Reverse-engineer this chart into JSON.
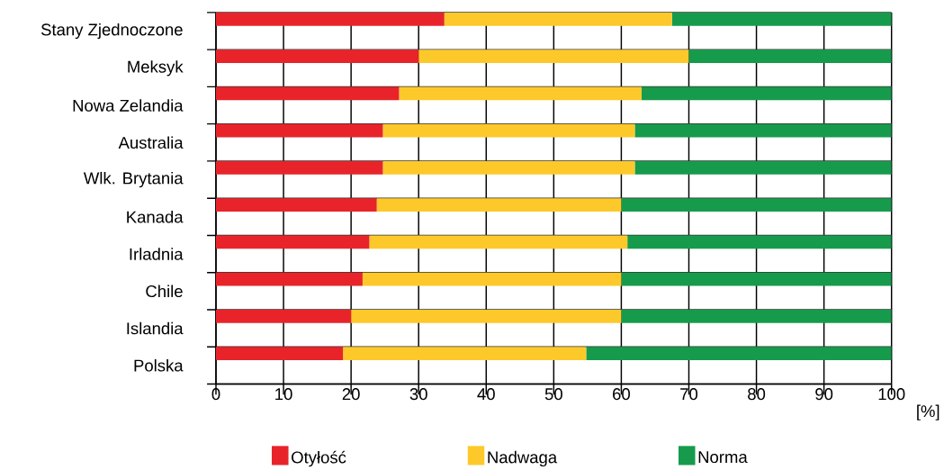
{
  "chart_data": {
    "type": "bar",
    "orientation": "horizontal",
    "stacked": true,
    "categories": [
      "Stany Zjednoczone",
      "Meksyk",
      "Nowa Zelandia",
      "Australia",
      "Wlk. Brytania",
      "Kanada",
      "Irladnia",
      "Chile",
      "Islandia",
      "Polska"
    ],
    "series": [
      {
        "name": "Otyłość",
        "color": "#e8242a",
        "values": [
          33.8,
          30,
          27.1,
          24.7,
          24.7,
          23.8,
          22.7,
          21.7,
          20,
          18.8
        ]
      },
      {
        "name": "Nadwaga",
        "color": "#fdc92a",
        "values": [
          33.7,
          40,
          35.9,
          37.3,
          37.3,
          36.2,
          38.2,
          38.3,
          40,
          36
        ]
      },
      {
        "name": "Norma",
        "color": "#169b4c",
        "values": [
          32.5,
          30,
          37,
          38,
          38,
          40,
          39.1,
          40,
          40,
          45.2
        ]
      }
    ],
    "xlim": [
      0,
      100
    ],
    "xticks": [
      0,
      10,
      20,
      30,
      40,
      50,
      60,
      70,
      80,
      90,
      100
    ],
    "xlabel": "[%]",
    "grid": true,
    "legend": "bottom"
  }
}
